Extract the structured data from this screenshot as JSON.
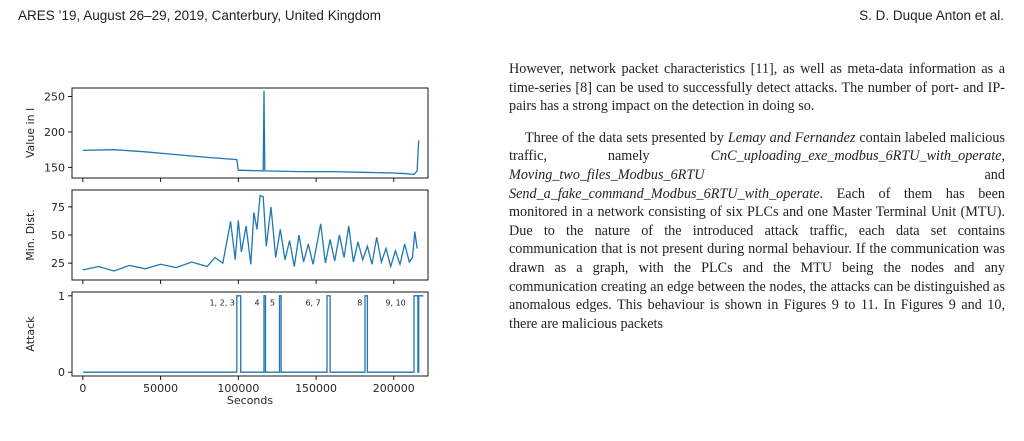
{
  "header": {
    "left": "ARES ’19, August 26–29, 2019, Canterbury, United Kingdom",
    "right": "S. D. Duque Anton et al."
  },
  "chart_data": [
    {
      "type": "line",
      "ylabel": "Value in l",
      "xlim": [
        -7000,
        222000
      ],
      "ylim": [
        135,
        262
      ],
      "yticks": [
        150,
        200,
        250
      ],
      "series": [
        {
          "color": "#1f77b4",
          "x": [
            0,
            20000,
            40000,
            60000,
            80000,
            99000,
            100000,
            116000,
            116500,
            117000,
            140000,
            160000,
            180000,
            200000,
            208000,
            213000,
            215000,
            216000
          ],
          "y": [
            174,
            175,
            172,
            168,
            164,
            161,
            146,
            145,
            258,
            145,
            144,
            144,
            143,
            142,
            141,
            140,
            145,
            188
          ]
        }
      ]
    },
    {
      "type": "line",
      "ylabel": "Min. Dist.",
      "xlim": [
        -7000,
        222000
      ],
      "ylim": [
        10,
        90
      ],
      "yticks": [
        25,
        50,
        75
      ],
      "series": [
        {
          "color": "#1f77b4",
          "x": [
            0,
            10000,
            20000,
            30000,
            40000,
            50000,
            60000,
            70000,
            80000,
            85000,
            90000,
            95000,
            98000,
            100000,
            102000,
            105000,
            108000,
            110000,
            112000,
            114000,
            116000,
            118000,
            121000,
            124000,
            127000,
            130000,
            133000,
            136000,
            139000,
            142000,
            145000,
            148000,
            150000,
            153000,
            156000,
            159000,
            162000,
            165000,
            168000,
            171000,
            174000,
            177000,
            180000,
            183000,
            186000,
            189000,
            192000,
            195000,
            198000,
            201000,
            204000,
            207000,
            210000,
            212000,
            213500,
            215000
          ],
          "y": [
            19,
            22,
            18,
            23,
            20,
            24,
            21,
            26,
            22,
            30,
            25,
            62,
            28,
            63,
            35,
            58,
            24,
            70,
            55,
            85,
            84,
            40,
            75,
            30,
            55,
            28,
            45,
            22,
            50,
            26,
            42,
            24,
            38,
            60,
            25,
            46,
            27,
            50,
            30,
            58,
            26,
            44,
            28,
            40,
            24,
            48,
            26,
            38,
            22,
            36,
            24,
            42,
            26,
            30,
            53,
            38
          ]
        }
      ]
    },
    {
      "type": "line",
      "ylabel": "Attack",
      "xlabel": "Seconds",
      "xlim": [
        -7000,
        222000
      ],
      "ylim": [
        -0.05,
        1.05
      ],
      "yticks": [
        0,
        1
      ],
      "xticks": [
        0,
        50000,
        100000,
        150000,
        200000
      ],
      "series": [
        {
          "color": "#1f77b4",
          "segments": [
            [
              99000,
              101500
            ],
            [
              116500,
              117500
            ],
            [
              126500,
              127500
            ],
            [
              157000,
              159000
            ],
            [
              181500,
              183000
            ],
            [
              213000,
              215500
            ]
          ]
        }
      ],
      "annotations": [
        {
          "text": "1, 2, 3",
          "x": 97800
        },
        {
          "text": "4",
          "x": 113700
        },
        {
          "text": "5",
          "x": 123600
        },
        {
          "text": "6, 7",
          "x": 153000
        },
        {
          "text": "8",
          "x": 179800
        },
        {
          "text": "9, 10",
          "x": 207700
        }
      ]
    }
  ],
  "body": {
    "para1": "However, network packet characteristics [11], as well as meta-data information as a time-series [8] can be used to successfully detect attacks. The number of port- and IP-pairs has a strong impact on the detection in doing so.",
    "para2_intro": "Three of the data sets presented by ",
    "para2_authors": "Lemay and Fernandez",
    "para2_mid": " contain labeled malicious traffic, namely ",
    "ds1": "CnC_uploading_exe_modbus_6RTU_with_operate",
    "sep1": ", ",
    "ds2": "Moving_two_files_Modbus_6RTU",
    "sep2": " and ",
    "ds3": "Send_a_fake_command_Modbus_6RTU_with_operate",
    "para2_rest": ". Each of them has been monitored in a network consisting of six PLCs and one Master Terminal Unit (MTU). Due to the nature of the introduced attack traffic, each data set contains communication that is not present during normal behaviour. If the communication was drawn as a graph, with the PLCs and the MTU being the nodes and any communication creating an edge between the nodes, the attacks can be distinguished as anomalous edges. This behaviour is shown in Figures 9 to 11.  In Figures 9 and 10, there are malicious packets"
  }
}
